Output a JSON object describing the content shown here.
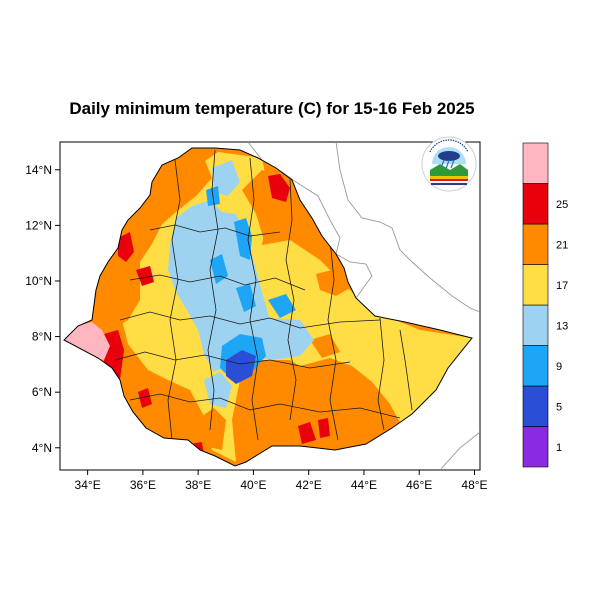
{
  "map": {
    "title": "Daily minimum temperature (C) for 15-16 Feb 2025",
    "region": "Ethiopia",
    "lon_range": [
      33,
      48.2
    ],
    "lat_range": [
      3.2,
      15
    ],
    "x_ticks": [
      {
        "value": 34,
        "label": "34°E"
      },
      {
        "value": 36,
        "label": "36°E"
      },
      {
        "value": 38,
        "label": "38°E"
      },
      {
        "value": 40,
        "label": "40°E"
      },
      {
        "value": 42,
        "label": "42°E"
      },
      {
        "value": 44,
        "label": "44°E"
      },
      {
        "value": 46,
        "label": "46°E"
      },
      {
        "value": 48,
        "label": "48°E"
      }
    ],
    "y_ticks": [
      {
        "value": 4,
        "label": "4°N"
      },
      {
        "value": 6,
        "label": "6°N"
      },
      {
        "value": 8,
        "label": "8°N"
      },
      {
        "value": 10,
        "label": "10°N"
      },
      {
        "value": 12,
        "label": "12°N"
      },
      {
        "value": 14,
        "label": "14°N"
      }
    ],
    "logo_icon": "ethiopian-meteorology-institute-logo"
  },
  "colorbar": {
    "bins": [
      {
        "color": "#8a2be2",
        "label": "1"
      },
      {
        "color": "#2a4fd6",
        "label": "5"
      },
      {
        "color": "#1ea5f5",
        "label": "9"
      },
      {
        "color": "#9dd3f0",
        "label": "13"
      },
      {
        "color": "#ffde45",
        "label": "17"
      },
      {
        "color": "#ff8a00",
        "label": "21"
      },
      {
        "color": "#e8000b",
        "label": "25"
      },
      {
        "color": "#ffb6c1",
        "label": ""
      }
    ]
  },
  "colors": {
    "lt1": "#8a2be2",
    "1to5": "#2a4fd6",
    "5to9": "#1ea5f5",
    "9to13": "#9dd3f0",
    "13to17": "#ffde45",
    "17to21": "#ff8a00",
    "21to25": "#e8000b",
    "gt25": "#ffb6c1"
  }
}
